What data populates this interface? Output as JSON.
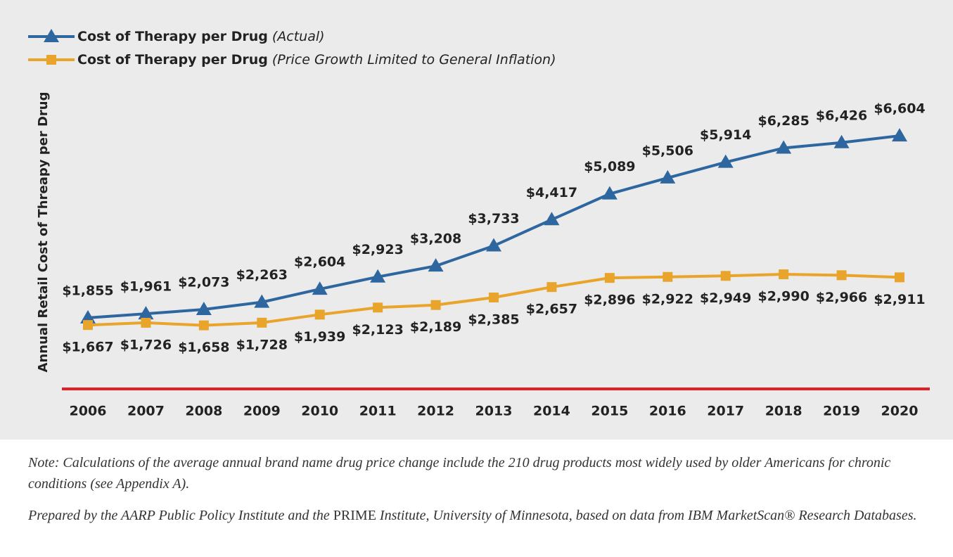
{
  "chart_data": {
    "type": "line",
    "y_label": "Annual Retail Cost of Threapy per Drug",
    "categories": [
      "2006",
      "2007",
      "2008",
      "2009",
      "2010",
      "2011",
      "2012",
      "2013",
      "2014",
      "2015",
      "2016",
      "2017",
      "2018",
      "2019",
      "2020"
    ],
    "ylim": [
      0,
      8000
    ],
    "yticks": [],
    "baseline_color": "#e31e24",
    "series": [
      {
        "name": "Cost of Therapy per Drug",
        "qualifier": "(Actual)",
        "color": "#2e67a0",
        "marker": "triangle",
        "values": [
          1855,
          1961,
          2073,
          2263,
          2604,
          2923,
          3208,
          3733,
          4417,
          5089,
          5506,
          5914,
          6285,
          6426,
          6604
        ],
        "value_labels": [
          "$1,855",
          "$1,961",
          "$2,073",
          "$2,263",
          "$2,604",
          "$2,923",
          "$3,208",
          "$3,733",
          "$4,417",
          "$5,089",
          "$5,506",
          "$5,914",
          "$6,285",
          "$6,426",
          "$6,604"
        ],
        "label_position": "above"
      },
      {
        "name": "Cost of Therapy per Drug",
        "qualifier": "(Price Growth Limited to General Inflation)",
        "color": "#e9a42b",
        "marker": "square",
        "values": [
          1667,
          1726,
          1658,
          1728,
          1939,
          2123,
          2189,
          2385,
          2657,
          2896,
          2922,
          2949,
          2990,
          2966,
          2911
        ],
        "value_labels": [
          "$1,667",
          "$1,726",
          "$1,658",
          "$1,728",
          "$1,939",
          "$2,123",
          "$2,189",
          "$2,385",
          "$2,657",
          "$2,896",
          "$2,922",
          "$2,949",
          "$2,990",
          "$2,966",
          "$2,911"
        ],
        "label_position": "below"
      }
    ]
  },
  "notes": {
    "note": "Note: Calculations of the average annual brand name drug price change include the 210 drug products most widely used by older Americans for chronic conditions (see Appendix A).",
    "source": [
      "Prepared by the AARP Public Policy Institute and the ",
      "PRIME",
      " Institute, University of Minnesota, based on data from IBM MarketScan® Research Databases."
    ]
  }
}
